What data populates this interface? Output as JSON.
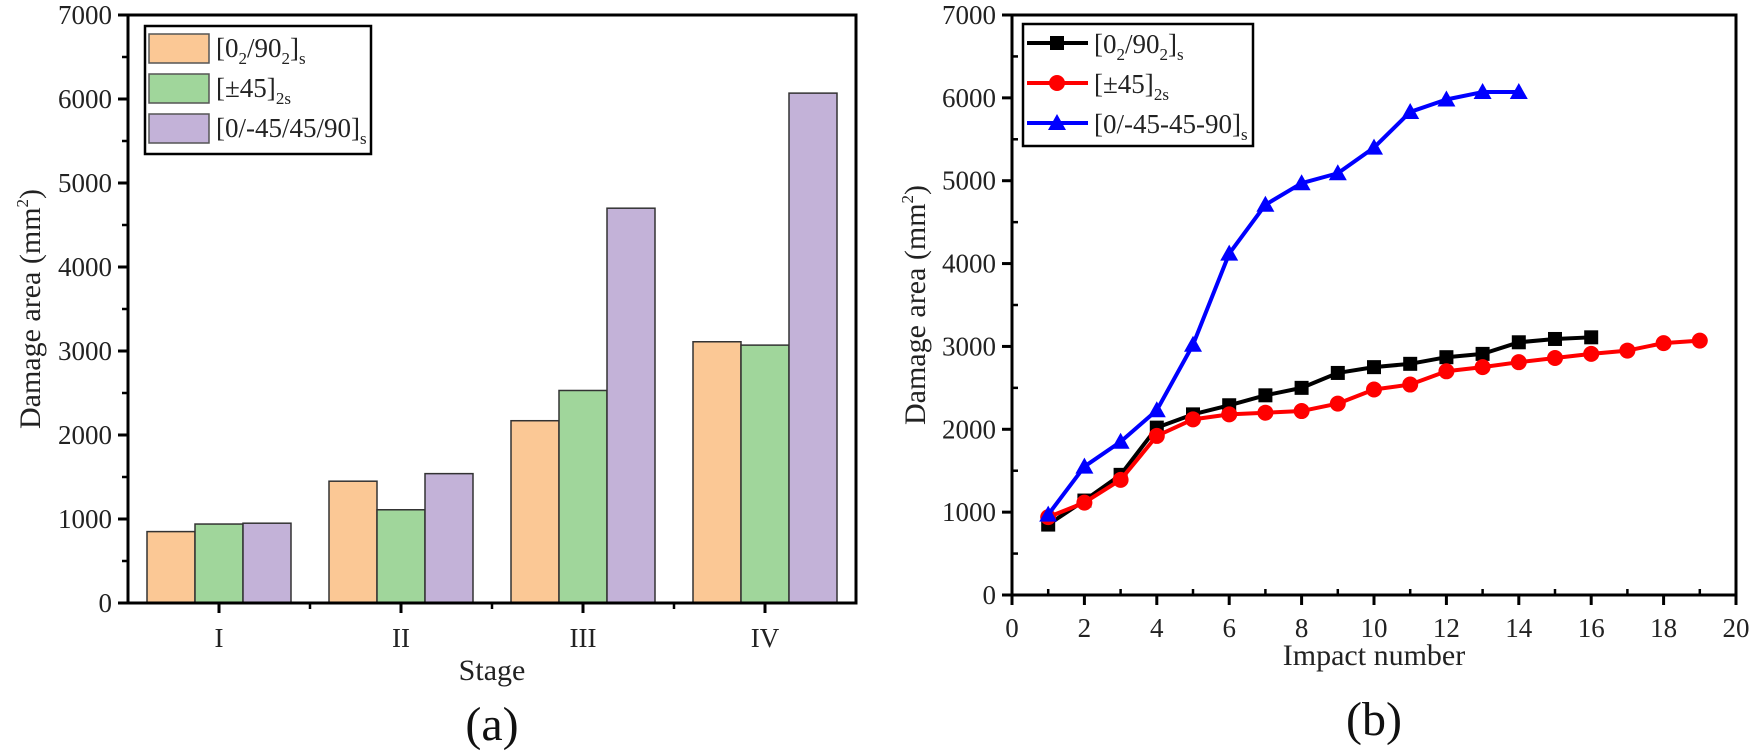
{
  "chart_data": [
    {
      "id": "a",
      "type": "bar",
      "panel_label": "(a)",
      "title": "",
      "xlabel": "Stage",
      "ylabel": "Damage area (mm²)",
      "ylabel_main": "Damage area (mm",
      "ylabel_sup": "2",
      "ylabel_end": ")",
      "ylim": [
        0,
        7000
      ],
      "yticks": [
        0,
        1000,
        2000,
        3000,
        4000,
        5000,
        6000,
        7000
      ],
      "categories": [
        "I",
        "II",
        "III",
        "IV"
      ],
      "legend_position": "top-left",
      "series": [
        {
          "name": "[0₂/90₂]s",
          "label_parts": [
            "[0",
            "2",
            "/90",
            "2",
            "]",
            "s"
          ],
          "color": "#fbc895",
          "values": [
            850,
            1450,
            2170,
            3110
          ]
        },
        {
          "name": "[±45]2s",
          "label_parts": [
            "[±45]",
            "2s"
          ],
          "color": "#a0d69b",
          "values": [
            940,
            1110,
            2530,
            3070
          ]
        },
        {
          "name": "[0/-45/45/90]s",
          "label_parts": [
            "[0/-45/45/90]",
            "s"
          ],
          "color": "#c3b2d8",
          "values": [
            950,
            1540,
            4700,
            6070
          ]
        }
      ]
    },
    {
      "id": "b",
      "type": "line",
      "panel_label": "(b)",
      "title": "",
      "xlabel": "Impact number",
      "ylabel": "Damage area (mm²)",
      "ylabel_main": "Damage area (mm",
      "ylabel_sup": "2",
      "ylabel_end": ")",
      "xlim": [
        0,
        20
      ],
      "ylim": [
        0,
        7000
      ],
      "xticks": [
        0,
        2,
        4,
        6,
        8,
        10,
        12,
        14,
        16,
        18,
        20
      ],
      "yticks": [
        0,
        1000,
        2000,
        3000,
        4000,
        5000,
        6000,
        7000
      ],
      "legend_position": "top-left",
      "series": [
        {
          "name": "[0₂/90₂]s",
          "label_parts": [
            "[0",
            "2",
            "/90",
            "2",
            "]",
            "s"
          ],
          "color": "#000000",
          "marker": "square",
          "x": [
            1,
            2,
            3,
            4,
            5,
            6,
            7,
            8,
            9,
            10,
            11,
            12,
            13,
            14,
            15,
            16
          ],
          "y": [
            850,
            1140,
            1450,
            2020,
            2180,
            2290,
            2410,
            2500,
            2680,
            2750,
            2790,
            2870,
            2910,
            3050,
            3090,
            3110
          ]
        },
        {
          "name": "[±45]2s",
          "label_parts": [
            "[±45]",
            "2s"
          ],
          "color": "#ff0000",
          "marker": "circle",
          "x": [
            1,
            2,
            3,
            4,
            5,
            6,
            7,
            8,
            9,
            10,
            11,
            12,
            13,
            14,
            15,
            16,
            17,
            18,
            19
          ],
          "y": [
            940,
            1115,
            1390,
            1920,
            2120,
            2180,
            2200,
            2220,
            2310,
            2480,
            2540,
            2700,
            2750,
            2810,
            2860,
            2910,
            2950,
            3040,
            3070
          ]
        },
        {
          "name": "[0/-45-45-90]s",
          "label_parts": [
            "[0/-45-45-90]",
            "s"
          ],
          "color": "#0000ff",
          "marker": "triangle",
          "x": [
            1,
            2,
            3,
            4,
            5,
            6,
            7,
            8,
            9,
            10,
            11,
            12,
            13,
            14
          ],
          "y": [
            970,
            1550,
            1850,
            2230,
            3020,
            4120,
            4710,
            4970,
            5090,
            5400,
            5830,
            5980,
            6070,
            6070
          ]
        }
      ]
    }
  ]
}
